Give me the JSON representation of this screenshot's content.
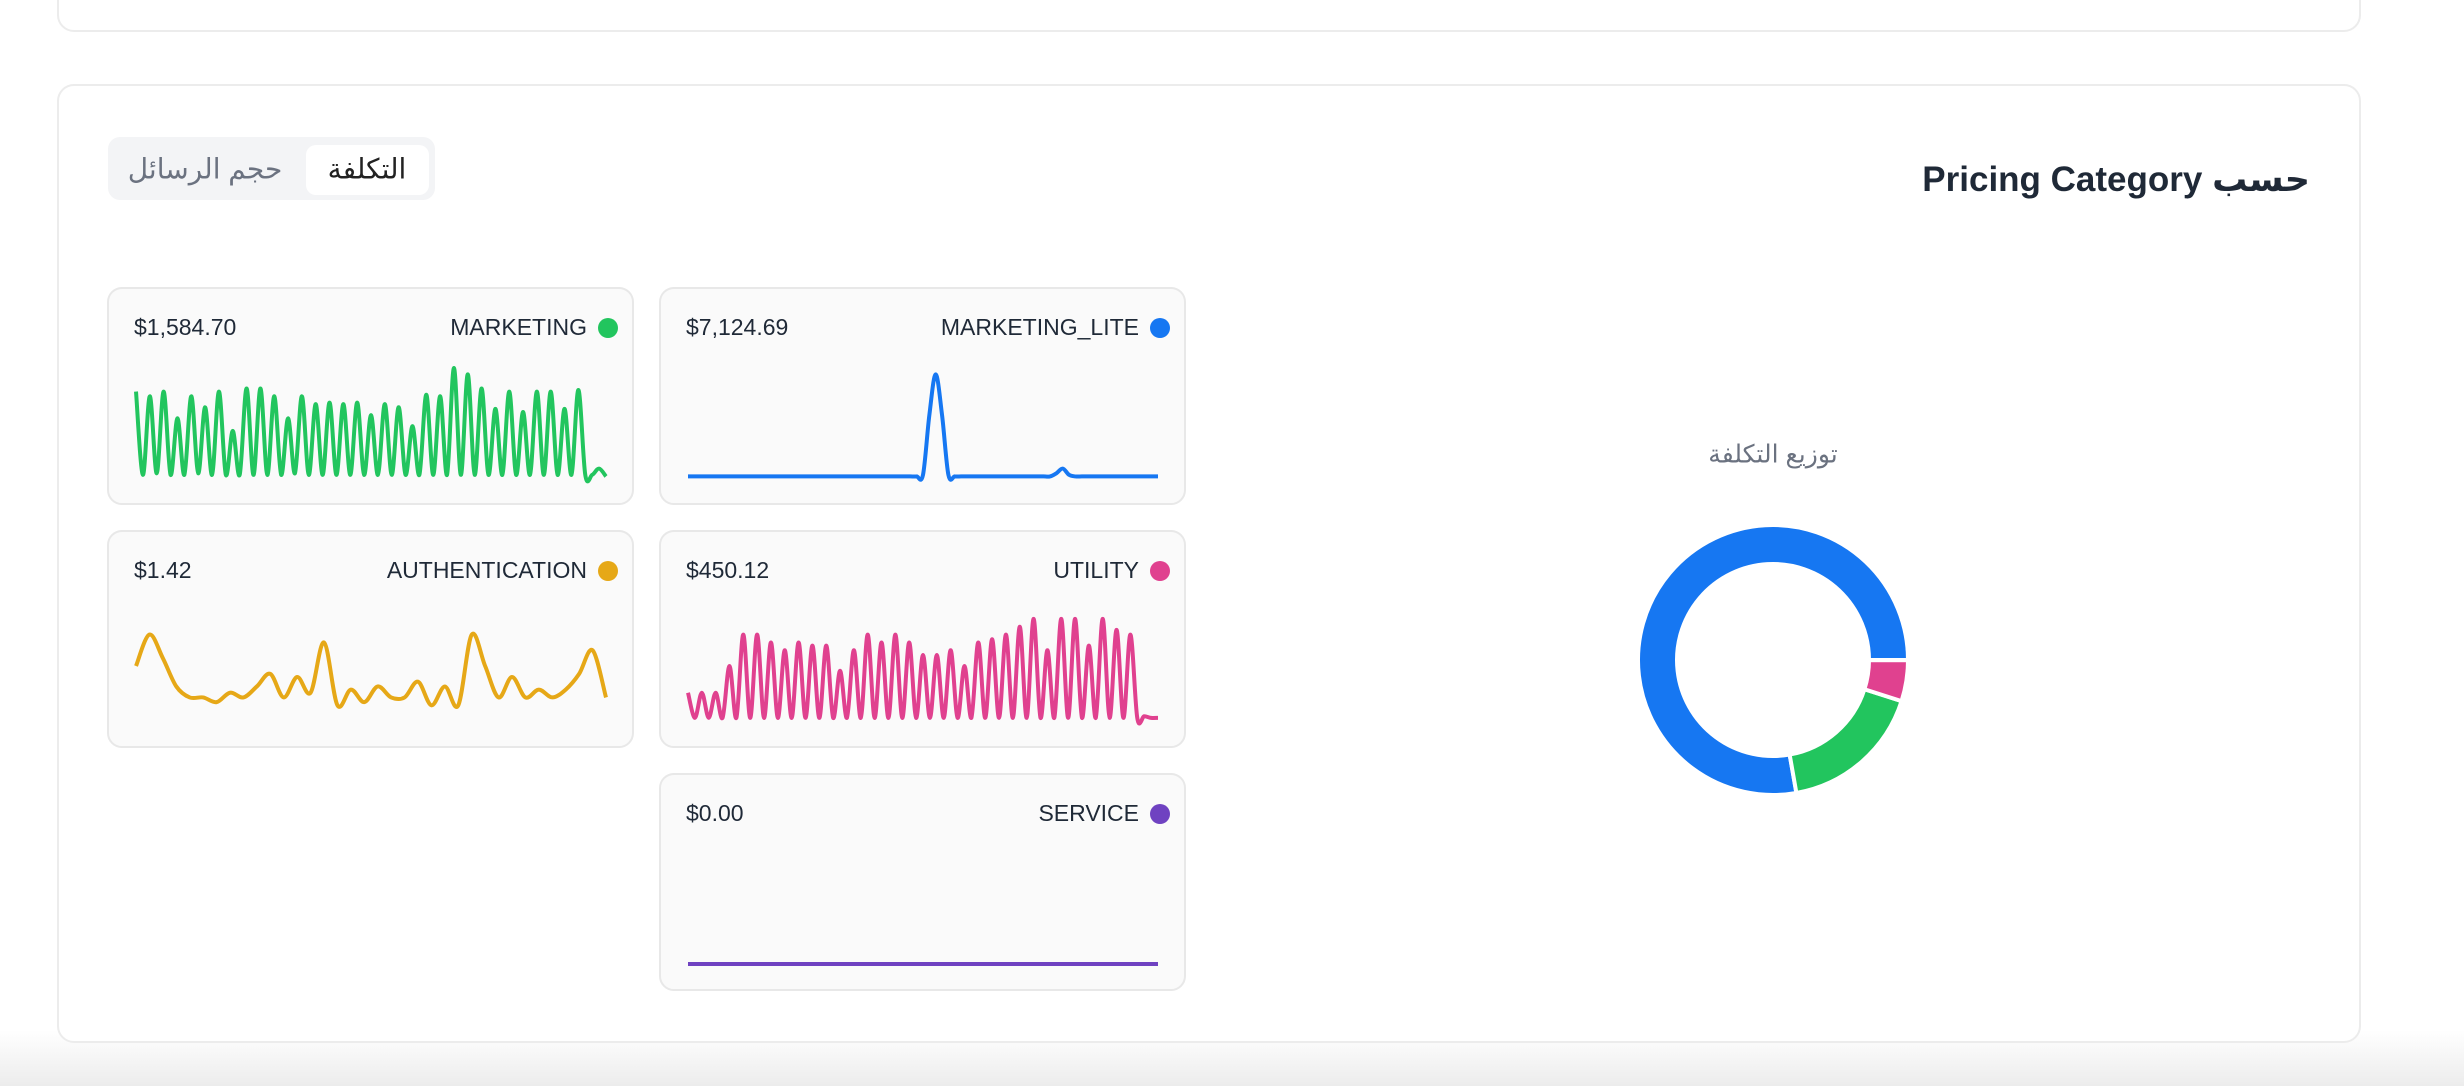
{
  "header": {
    "title": "حسب Pricing Category",
    "tabs": [
      "التكلفة",
      "حجم الرسائل"
    ],
    "active_tab": 0
  },
  "chart_data": {
    "type": "donut",
    "title": "توزيع التكلفة",
    "series": [
      {
        "name": "MARKETING_LITE",
        "color": "#1677f2",
        "value": 7124.69,
        "value_label": "$7,124.69",
        "trend": [
          1,
          1,
          1,
          1,
          1,
          1,
          1,
          1,
          1,
          1,
          1,
          1,
          1,
          1,
          1,
          1,
          1,
          1,
          1,
          1,
          1,
          1,
          1,
          1,
          1,
          1,
          1,
          1,
          1,
          1,
          1,
          1,
          1,
          1,
          1,
          1,
          1,
          2,
          40,
          66,
          40,
          2,
          1,
          1,
          1,
          1,
          1,
          1,
          1,
          1,
          1,
          1,
          1,
          1,
          1,
          1,
          1,
          1,
          3,
          6,
          2,
          1,
          1,
          1,
          1,
          1,
          1,
          1,
          1,
          1,
          1,
          1,
          1,
          1,
          1
        ]
      },
      {
        "name": "MARKETING",
        "color": "#22c55e",
        "value": 1584.7,
        "value_label": "$1,584.70",
        "trend": [
          55,
          2,
          52,
          3,
          55,
          2,
          38,
          2,
          52,
          3,
          45,
          2,
          55,
          2,
          30,
          2,
          57,
          2,
          57,
          2,
          52,
          2,
          38,
          3,
          52,
          2,
          47,
          2,
          48,
          2,
          47,
          2,
          48,
          2,
          40,
          2,
          47,
          2,
          45,
          2,
          33,
          2,
          53,
          2,
          52,
          2,
          70,
          2,
          66,
          2,
          57,
          2,
          44,
          2,
          55,
          2,
          42,
          2,
          55,
          2,
          55,
          2,
          44,
          2,
          56,
          2,
          2,
          6,
          1
        ]
      },
      {
        "name": "UTILITY",
        "color": "#e0418f",
        "value": 450.12,
        "value_label": "$450.12",
        "trend": [
          18,
          2,
          18,
          2,
          18,
          2,
          35,
          2,
          55,
          2,
          55,
          2,
          50,
          2,
          45,
          2,
          50,
          2,
          48,
          2,
          48,
          2,
          32,
          2,
          45,
          2,
          55,
          2,
          50,
          2,
          55,
          2,
          50,
          2,
          42,
          2,
          42,
          2,
          45,
          2,
          35,
          2,
          50,
          2,
          52,
          2,
          55,
          2,
          60,
          2,
          65,
          2,
          45,
          2,
          65,
          2,
          65,
          2,
          48,
          2,
          65,
          2,
          58,
          2,
          55,
          2,
          3,
          2,
          2
        ]
      },
      {
        "name": "AUTHENTICATION",
        "color": "#e6a817",
        "value": 1.42,
        "value_label": "$1.42",
        "trend": [
          35,
          55,
          40,
          22,
          15,
          15,
          12,
          18,
          15,
          22,
          30,
          15,
          28,
          18,
          50,
          10,
          20,
          12,
          22,
          15,
          15,
          25,
          10,
          22,
          10,
          55,
          35,
          15,
          28,
          15,
          20,
          15,
          20,
          30,
          45,
          15
        ]
      },
      {
        "name": "SERVICE",
        "color": "#6f42c1",
        "value": 0,
        "value_label": "$0.00",
        "trend": [
          0,
          0,
          0,
          0,
          0,
          0,
          0,
          0,
          0,
          0,
          0,
          0,
          0,
          0,
          0,
          0,
          0,
          0,
          0,
          0
        ]
      }
    ]
  }
}
